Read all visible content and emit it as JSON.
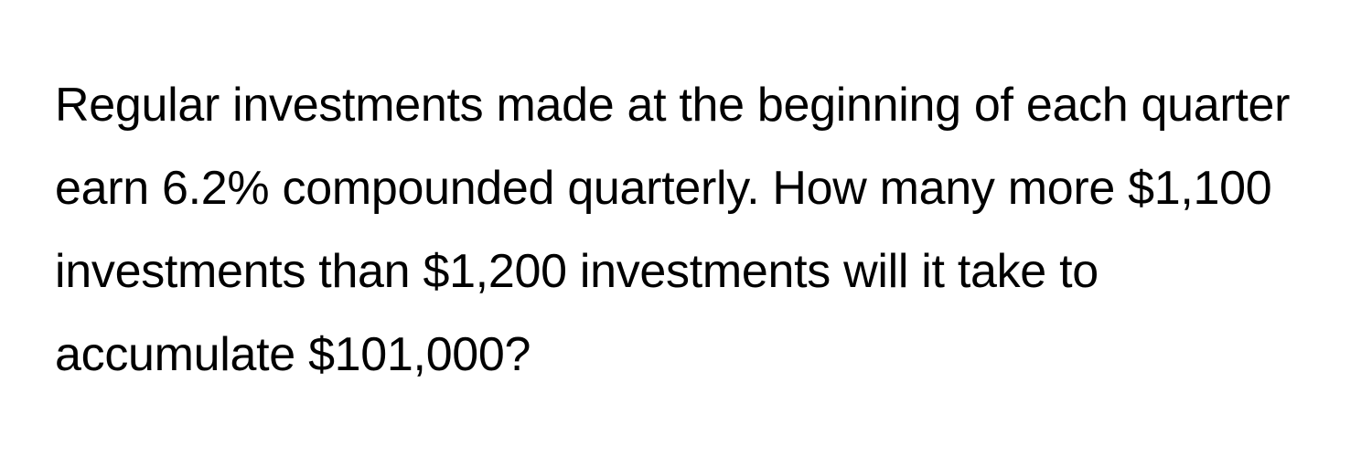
{
  "question": {
    "text": "Regular investments made at the beginning of each quarter earn 6.2% compounded quarterly. How many more $1,100 investments than $1,200 investments will it take to accumulate $101,000?",
    "text_color": "#000000",
    "background_color": "#ffffff",
    "font_size": 52,
    "line_height": 1.75
  }
}
